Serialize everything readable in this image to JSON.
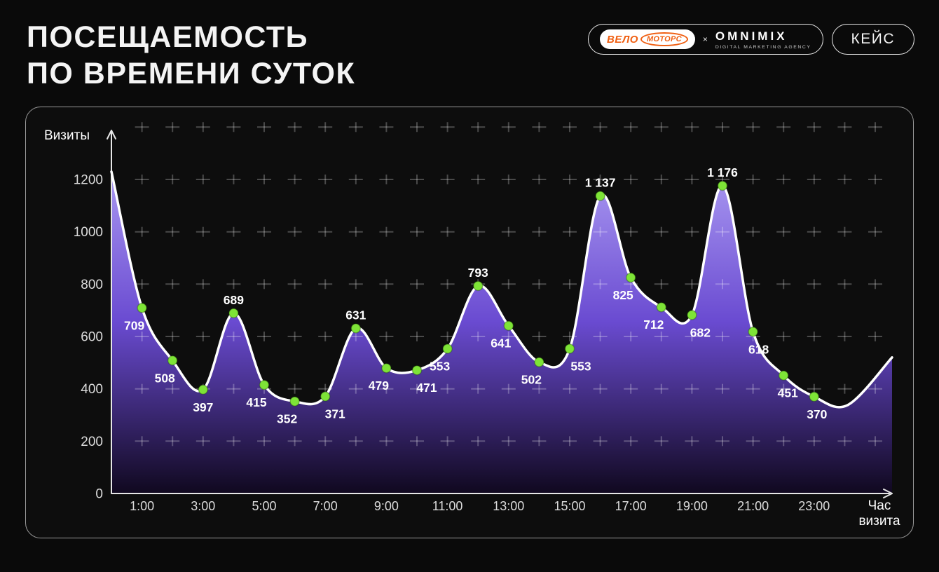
{
  "header": {
    "title_line1": "ПОСЕЩАЕМОСТЬ",
    "title_line2": "ПО ВРЕМЕНИ СУТОК",
    "logos": {
      "velomotors_part1": "ВЕЛО",
      "velomotors_part2": "МОТОРС",
      "separator": "×",
      "omnimix": "OMNIMIX",
      "omnimix_subtitle": "DIGITAL MARKETING AGENCY"
    },
    "case_label": "КЕЙС"
  },
  "chart_data": {
    "type": "area",
    "title": "Посещаемость по времени суток",
    "ylabel": "Визиты",
    "xlabel_line1": "Час",
    "xlabel_line2": "визита",
    "y_ticks": [
      0,
      200,
      400,
      600,
      800,
      1000,
      1200
    ],
    "ylim": [
      0,
      1300
    ],
    "x_ticks": [
      {
        "hour": 1,
        "label": "1:00"
      },
      {
        "hour": 3,
        "label": "3:00"
      },
      {
        "hour": 5,
        "label": "5:00"
      },
      {
        "hour": 7,
        "label": "7:00"
      },
      {
        "hour": 9,
        "label": "9:00"
      },
      {
        "hour": 11,
        "label": "11:00"
      },
      {
        "hour": 13,
        "label": "13:00"
      },
      {
        "hour": 15,
        "label": "15:00"
      },
      {
        "hour": 17,
        "label": "17:00"
      },
      {
        "hour": 19,
        "label": "19:00"
      },
      {
        "hour": 21,
        "label": "21:00"
      },
      {
        "hour": 23,
        "label": "23:00"
      }
    ],
    "grid": {
      "style": "dashed-cross",
      "color": "rgba(255,255,255,0.25)"
    },
    "colors": {
      "line": "#ffffff",
      "point": "#7EE437",
      "point_edge": "rgba(25,70,0,0.35)",
      "label": "#ffffff",
      "axis": "#e6e6e6",
      "tick": "#dcdcdc",
      "area_top": "#A593EF",
      "area_mid": "#6A4BD1",
      "area_bottom": "#10081F"
    },
    "points": [
      {
        "hour": 1,
        "value": 709,
        "label": "709",
        "label_pos": "below"
      },
      {
        "hour": 2,
        "value": 508,
        "label": "508",
        "label_pos": "below"
      },
      {
        "hour": 3,
        "value": 397,
        "label": "397",
        "label_pos": "below",
        "ldx": 0
      },
      {
        "hour": 4,
        "value": 689,
        "label": "689",
        "label_pos": "above"
      },
      {
        "hour": 5,
        "value": 415,
        "label": "415",
        "label_pos": "below"
      },
      {
        "hour": 6,
        "value": 352,
        "label": "352",
        "label_pos": "below"
      },
      {
        "hour": 7,
        "value": 371,
        "label": "371",
        "label_pos": "below",
        "ldx": 14
      },
      {
        "hour": 8,
        "value": 631,
        "label": "631",
        "label_pos": "above"
      },
      {
        "hour": 9,
        "value": 479,
        "label": "479",
        "label_pos": "below"
      },
      {
        "hour": 10,
        "value": 471,
        "label": "471",
        "label_pos": "below",
        "ldx": 14
      },
      {
        "hour": 11,
        "value": 553,
        "label": "553",
        "label_pos": "below"
      },
      {
        "hour": 12,
        "value": 793,
        "label": "793",
        "label_pos": "above"
      },
      {
        "hour": 13,
        "value": 641,
        "label": "641",
        "label_pos": "below"
      },
      {
        "hour": 14,
        "value": 502,
        "label": "502",
        "label_pos": "below"
      },
      {
        "hour": 15,
        "value": 553,
        "label": "553",
        "label_pos": "below",
        "ldx": 16
      },
      {
        "hour": 16,
        "value": 1137,
        "label": "1 137",
        "label_pos": "above"
      },
      {
        "hour": 17,
        "value": 825,
        "label": "825",
        "label_pos": "below"
      },
      {
        "hour": 18,
        "value": 712,
        "label": "712",
        "label_pos": "below"
      },
      {
        "hour": 19,
        "value": 682,
        "label": "682",
        "label_pos": "below",
        "ldx": 12
      },
      {
        "hour": 20,
        "value": 1176,
        "label": "1 176",
        "label_pos": "above"
      },
      {
        "hour": 21,
        "value": 618,
        "label": "618",
        "label_pos": "below",
        "ldx": 8
      },
      {
        "hour": 22,
        "value": 451,
        "label": "451",
        "label_pos": "below",
        "ldx": 6
      },
      {
        "hour": 23,
        "value": 370,
        "label": "370",
        "label_pos": "below",
        "ldx": 4
      }
    ],
    "edge_start": {
      "hour": 0,
      "value": 1230,
      "estimated": true
    },
    "edge_end": [
      {
        "hour": 24.1,
        "value": 338,
        "estimated": true
      },
      {
        "hour": 25.55,
        "value": 520,
        "estimated": true
      }
    ]
  }
}
